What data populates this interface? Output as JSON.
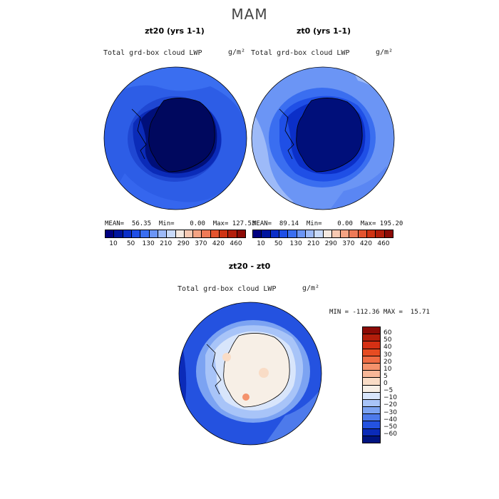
{
  "season": "MAM",
  "panels": [
    {
      "title": "zt20 (yrs 1-1)",
      "variable": "Total grd-box cloud LWP",
      "unit": "g/m²",
      "stats": "MEAN=  56.35  Min=    0.00  Max= 127.53"
    },
    {
      "title": "zt0 (yrs 1-1)",
      "variable": "Total grd-box cloud LWP",
      "unit": "g/m²",
      "stats": "MEAN=  89.14  Min=    0.00  Max= 195.20"
    }
  ],
  "colorbar_ticks": [
    "10",
    "50",
    "130",
    "210",
    "290",
    "370",
    "420",
    "460"
  ],
  "colorbar_colors": [
    "#000080",
    "#00159e",
    "#0b2fc8",
    "#1f4fe6",
    "#3a6ef0",
    "#6b95f5",
    "#9dbaf8",
    "#c9daf9",
    "#f5e9e0",
    "#f7c9b2",
    "#f4a383",
    "#ee7a57",
    "#e3542f",
    "#cf3313",
    "#b31e0b",
    "#8c0b06"
  ],
  "diff": {
    "title": "zt20 - zt0",
    "variable": "Total grd-box cloud LWP",
    "unit": "g/m²",
    "stats": "MIN = -112.36 MAX =  15.71",
    "legend_labels": [
      "60",
      "50",
      "40",
      "30",
      "20",
      "10",
      "5",
      "0",
      "−5",
      "−10",
      "−20",
      "−30",
      "−40",
      "−50",
      "−60"
    ],
    "legend_colors": [
      "#8c0b06",
      "#b31e0b",
      "#d53014",
      "#e64c22",
      "#ef6c44",
      "#f4926c",
      "#f7b798",
      "#f9dcc6",
      "#f7efe6",
      "#d8e5fb",
      "#a8c4f8",
      "#7ca3f2",
      "#4d7aeb",
      "#2452e0",
      "#0b2bb8",
      "#001480"
    ]
  },
  "chart_data": [
    {
      "type": "heatmap",
      "title": "zt20 (yrs 1-1)",
      "subtitle": "Total grd-box cloud LWP",
      "unit": "g/m²",
      "mean": 56.35,
      "min": 0.0,
      "max": 127.53,
      "levels": [
        10,
        50,
        130,
        210,
        290,
        370,
        420,
        460
      ],
      "projection": "south polar stereographic"
    },
    {
      "type": "heatmap",
      "title": "zt0 (yrs 1-1)",
      "subtitle": "Total grd-box cloud LWP",
      "unit": "g/m²",
      "mean": 89.14,
      "min": 0.0,
      "max": 195.2,
      "levels": [
        10,
        50,
        130,
        210,
        290,
        370,
        420,
        460
      ],
      "projection": "south polar stereographic"
    },
    {
      "type": "heatmap",
      "title": "zt20 - zt0",
      "subtitle": "Total grd-box cloud LWP",
      "unit": "g/m²",
      "min": -112.36,
      "max": 15.71,
      "levels": [
        -60,
        -50,
        -40,
        -30,
        -20,
        -10,
        -5,
        0,
        5,
        10,
        20,
        30,
        40,
        50,
        60
      ],
      "projection": "south polar stereographic"
    }
  ]
}
